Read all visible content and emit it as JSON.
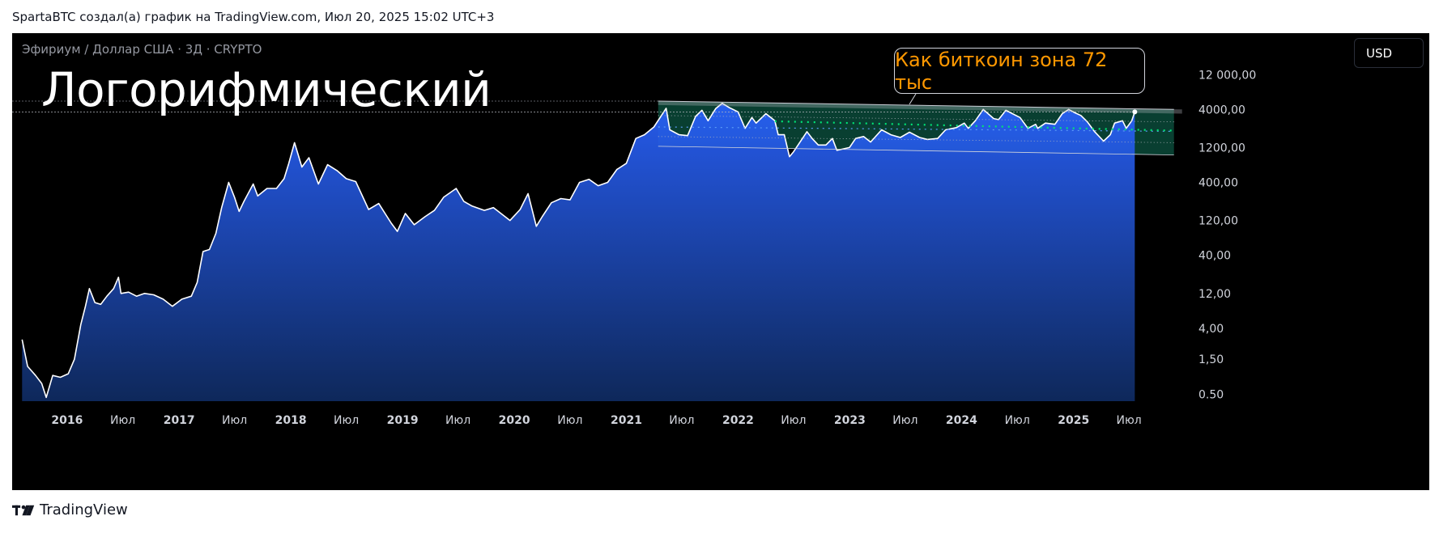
{
  "header": {
    "caption": "SpartaBTC создал(а) график на TradingView.com, Июл 20, 2025 15:02 UTC+3"
  },
  "chart": {
    "symbol_line": "Эфириум / Доллар США · 3Д · CRYPTO",
    "annotation_title": "Логорифмический",
    "callout_text": "Как биткоин зона 72 тыс",
    "currency_label": "USD"
  },
  "footer": {
    "brand": "TradingView",
    "logo_icon": "tradingview-logo-icon"
  },
  "colors": {
    "background": "#000000",
    "area_top": "#2962ff",
    "area_bottom": "#0f2a5f",
    "line": "#ffffff",
    "channel_fill": "#0b4a3a",
    "dotted_level": "#00e676",
    "callout_text": "#ff9800",
    "axis_text": "#d1d4dc"
  },
  "chart_data": {
    "type": "area",
    "scale": "log",
    "ylim": [
      0.4,
      16000
    ],
    "y_ticks": [
      {
        "value": 12000,
        "label": "12 000,00"
      },
      {
        "value": 4000,
        "label": "4000,00"
      },
      {
        "value": 1200,
        "label": "1200,00"
      },
      {
        "value": 400,
        "label": "400,00"
      },
      {
        "value": 120,
        "label": "120,00"
      },
      {
        "value": 40,
        "label": "40,00"
      },
      {
        "value": 12,
        "label": "12,00"
      },
      {
        "value": 4,
        "label": "4,00"
      },
      {
        "value": 1.5,
        "label": "1,50"
      },
      {
        "value": 0.5,
        "label": "0.50"
      }
    ],
    "x_ticks": [
      {
        "date": "2016-01-01",
        "label": "2016"
      },
      {
        "date": "2016-07-01",
        "label": "Июл"
      },
      {
        "date": "2017-01-01",
        "label": "2017"
      },
      {
        "date": "2017-07-01",
        "label": "Июл"
      },
      {
        "date": "2018-01-01",
        "label": "2018"
      },
      {
        "date": "2018-07-01",
        "label": "Июл"
      },
      {
        "date": "2019-01-01",
        "label": "2019"
      },
      {
        "date": "2019-07-01",
        "label": "Июл"
      },
      {
        "date": "2020-01-01",
        "label": "2020"
      },
      {
        "date": "2020-07-01",
        "label": "Июл"
      },
      {
        "date": "2021-01-01",
        "label": "2021"
      },
      {
        "date": "2021-07-01",
        "label": "Июл"
      },
      {
        "date": "2022-01-01",
        "label": "2022"
      },
      {
        "date": "2022-07-01",
        "label": "Июл"
      },
      {
        "date": "2023-01-01",
        "label": "2023"
      },
      {
        "date": "2023-07-01",
        "label": "Июл"
      },
      {
        "date": "2024-01-01",
        "label": "2024"
      },
      {
        "date": "2024-07-01",
        "label": "Июл"
      },
      {
        "date": "2025-01-01",
        "label": "2025"
      },
      {
        "date": "2025-07-01",
        "label": "Июл"
      }
    ],
    "xlim": [
      "2015-08-01",
      "2025-12-01"
    ],
    "series": [
      {
        "points": [
          [
            "2015-08-07",
            2.8
          ],
          [
            "2015-08-25",
            1.2
          ],
          [
            "2015-09-20",
            0.9
          ],
          [
            "2015-10-10",
            0.7
          ],
          [
            "2015-10-25",
            0.45
          ],
          [
            "2015-11-15",
            0.9
          ],
          [
            "2015-12-10",
            0.85
          ],
          [
            "2016-01-05",
            0.95
          ],
          [
            "2016-01-25",
            1.5
          ],
          [
            "2016-02-15",
            4.5
          ],
          [
            "2016-03-01",
            8
          ],
          [
            "2016-03-14",
            14
          ],
          [
            "2016-04-01",
            9
          ],
          [
            "2016-04-20",
            8.5
          ],
          [
            "2016-05-10",
            11
          ],
          [
            "2016-06-01",
            14
          ],
          [
            "2016-06-17",
            20
          ],
          [
            "2016-06-25",
            12
          ],
          [
            "2016-07-20",
            12.5
          ],
          [
            "2016-08-15",
            11
          ],
          [
            "2016-09-10",
            12
          ],
          [
            "2016-10-10",
            11.5
          ],
          [
            "2016-11-10",
            10
          ],
          [
            "2016-12-10",
            8
          ],
          [
            "2017-01-10",
            10
          ],
          [
            "2017-02-10",
            11
          ],
          [
            "2017-03-01",
            17
          ],
          [
            "2017-03-20",
            45
          ],
          [
            "2017-04-10",
            48
          ],
          [
            "2017-05-01",
            80
          ],
          [
            "2017-05-20",
            180
          ],
          [
            "2017-06-12",
            400
          ],
          [
            "2017-07-01",
            250
          ],
          [
            "2017-07-16",
            160
          ],
          [
            "2017-08-01",
            220
          ],
          [
            "2017-08-31",
            380
          ],
          [
            "2017-09-15",
            260
          ],
          [
            "2017-10-15",
            330
          ],
          [
            "2017-11-15",
            330
          ],
          [
            "2017-12-10",
            450
          ],
          [
            "2017-12-25",
            720
          ],
          [
            "2018-01-13",
            1400
          ],
          [
            "2018-02-06",
            650
          ],
          [
            "2018-03-01",
            870
          ],
          [
            "2018-04-01",
            380
          ],
          [
            "2018-05-01",
            700
          ],
          [
            "2018-06-01",
            580
          ],
          [
            "2018-07-01",
            450
          ],
          [
            "2018-08-01",
            410
          ],
          [
            "2018-09-12",
            170
          ],
          [
            "2018-10-15",
            205
          ],
          [
            "2018-11-25",
            110
          ],
          [
            "2018-12-15",
            85
          ],
          [
            "2019-01-10",
            150
          ],
          [
            "2019-02-08",
            105
          ],
          [
            "2019-03-15",
            135
          ],
          [
            "2019-04-15",
            165
          ],
          [
            "2019-05-15",
            250
          ],
          [
            "2019-06-25",
            330
          ],
          [
            "2019-07-20",
            220
          ],
          [
            "2019-08-15",
            190
          ],
          [
            "2019-09-25",
            165
          ],
          [
            "2019-10-25",
            180
          ],
          [
            "2019-12-18",
            120
          ],
          [
            "2020-01-20",
            170
          ],
          [
            "2020-02-15",
            280
          ],
          [
            "2020-03-13",
            100
          ],
          [
            "2020-04-01",
            135
          ],
          [
            "2020-05-01",
            210
          ],
          [
            "2020-06-01",
            240
          ],
          [
            "2020-07-01",
            230
          ],
          [
            "2020-08-01",
            400
          ],
          [
            "2020-09-01",
            440
          ],
          [
            "2020-10-01",
            360
          ],
          [
            "2020-11-01",
            400
          ],
          [
            "2020-12-01",
            600
          ],
          [
            "2021-01-01",
            730
          ],
          [
            "2021-02-01",
            1600
          ],
          [
            "2021-03-01",
            1800
          ],
          [
            "2021-04-01",
            2300
          ],
          [
            "2021-05-11",
            4150
          ],
          [
            "2021-05-23",
            2100
          ],
          [
            "2021-06-22",
            1800
          ],
          [
            "2021-07-20",
            1750
          ],
          [
            "2021-08-15",
            3200
          ],
          [
            "2021-09-05",
            3900
          ],
          [
            "2021-09-25",
            2800
          ],
          [
            "2021-10-20",
            4100
          ],
          [
            "2021-11-10",
            4850
          ],
          [
            "2021-12-05",
            4200
          ],
          [
            "2022-01-01",
            3700
          ],
          [
            "2022-01-24",
            2200
          ],
          [
            "2022-02-15",
            3100
          ],
          [
            "2022-03-01",
            2600
          ],
          [
            "2022-04-02",
            3500
          ],
          [
            "2022-05-01",
            2800
          ],
          [
            "2022-05-12",
            1800
          ],
          [
            "2022-06-01",
            1800
          ],
          [
            "2022-06-18",
            900
          ],
          [
            "2022-07-01",
            1050
          ],
          [
            "2022-08-14",
            1980
          ],
          [
            "2022-09-01",
            1580
          ],
          [
            "2022-09-20",
            1300
          ],
          [
            "2022-10-15",
            1300
          ],
          [
            "2022-11-05",
            1600
          ],
          [
            "2022-11-20",
            1100
          ],
          [
            "2022-12-31",
            1200
          ],
          [
            "2023-01-20",
            1600
          ],
          [
            "2023-02-15",
            1700
          ],
          [
            "2023-03-10",
            1430
          ],
          [
            "2023-04-15",
            2100
          ],
          [
            "2023-05-15",
            1800
          ],
          [
            "2023-06-15",
            1650
          ],
          [
            "2023-07-15",
            1950
          ],
          [
            "2023-08-17",
            1650
          ],
          [
            "2023-09-11",
            1550
          ],
          [
            "2023-10-15",
            1600
          ],
          [
            "2023-11-10",
            2100
          ],
          [
            "2023-12-15",
            2250
          ],
          [
            "2024-01-10",
            2600
          ],
          [
            "2024-01-23",
            2200
          ],
          [
            "2024-02-15",
            2800
          ],
          [
            "2024-03-12",
            4000
          ],
          [
            "2024-04-15",
            3000
          ],
          [
            "2024-05-01",
            2900
          ],
          [
            "2024-05-25",
            3900
          ],
          [
            "2024-06-15",
            3500
          ],
          [
            "2024-07-10",
            3100
          ],
          [
            "2024-08-05",
            2200
          ],
          [
            "2024-08-30",
            2500
          ],
          [
            "2024-09-06",
            2200
          ],
          [
            "2024-10-01",
            2600
          ],
          [
            "2024-11-01",
            2500
          ],
          [
            "2024-11-25",
            3500
          ],
          [
            "2024-12-16",
            4000
          ],
          [
            "2025-01-05",
            3600
          ],
          [
            "2025-01-25",
            3300
          ],
          [
            "2025-02-15",
            2700
          ],
          [
            "2025-03-10",
            2000
          ],
          [
            "2025-04-09",
            1470
          ],
          [
            "2025-05-01",
            1800
          ],
          [
            "2025-05-15",
            2600
          ],
          [
            "2025-06-10",
            2800
          ],
          [
            "2025-06-22",
            2200
          ],
          [
            "2025-07-10",
            2800
          ],
          [
            "2025-07-20",
            3700
          ]
        ]
      }
    ]
  }
}
